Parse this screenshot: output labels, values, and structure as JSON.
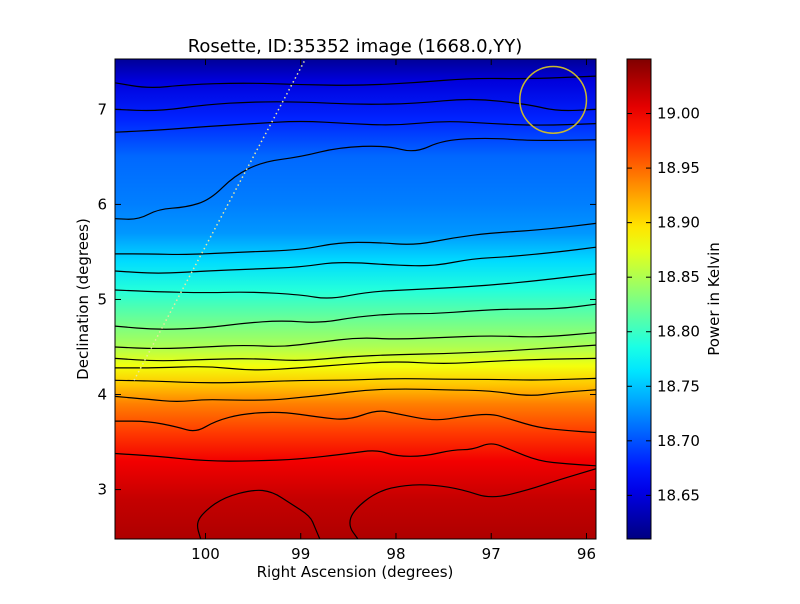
{
  "chart_data": {
    "type": "heatmap",
    "title": "Rosette, ID:35352 image (1668.0,YY)",
    "xlabel": "Right Ascension (degrees)",
    "ylabel": "Declination (degrees)",
    "xlim": [
      100.95,
      95.9
    ],
    "ylim": [
      2.48,
      7.53
    ],
    "x_inverted": true,
    "x_ticks": [
      100,
      99,
      98,
      97,
      96
    ],
    "y_ticks": [
      3,
      4,
      5,
      6,
      7
    ],
    "grid": false,
    "colormap": "jet",
    "colorbar": {
      "label": "Power in Kelvin",
      "range": [
        18.61,
        19.05
      ],
      "ticks": [
        "18.65",
        "18.70",
        "18.75",
        "18.80",
        "18.85",
        "18.90",
        "18.95",
        "19.00"
      ]
    },
    "intensity_profile": [
      {
        "dec": 2.48,
        "value": 19.03
      },
      {
        "dec": 2.9,
        "value": 19.02
      },
      {
        "dec": 3.3,
        "value": 19.0
      },
      {
        "dec": 3.6,
        "value": 18.97
      },
      {
        "dec": 3.9,
        "value": 18.94
      },
      {
        "dec": 4.1,
        "value": 18.91
      },
      {
        "dec": 4.3,
        "value": 18.88
      },
      {
        "dec": 4.5,
        "value": 18.85
      },
      {
        "dec": 4.8,
        "value": 18.82
      },
      {
        "dec": 5.1,
        "value": 18.79
      },
      {
        "dec": 5.4,
        "value": 18.76
      },
      {
        "dec": 5.7,
        "value": 18.73
      },
      {
        "dec": 6.0,
        "value": 18.72
      },
      {
        "dec": 6.5,
        "value": 18.71
      },
      {
        "dec": 6.9,
        "value": 18.68
      },
      {
        "dec": 7.3,
        "value": 18.65
      },
      {
        "dec": 7.53,
        "value": 18.62
      }
    ],
    "contours": [
      {
        "points": [
          [
            100.95,
            7.28
          ],
          [
            100.6,
            7.22
          ],
          [
            100.2,
            7.26
          ],
          [
            99.6,
            7.28
          ],
          [
            99.0,
            7.26
          ],
          [
            98.4,
            7.25
          ],
          [
            97.8,
            7.28
          ],
          [
            97.2,
            7.33
          ],
          [
            96.6,
            7.32
          ],
          [
            95.9,
            7.35
          ]
        ]
      },
      {
        "points": [
          [
            100.95,
            7.0
          ],
          [
            100.5,
            6.98
          ],
          [
            100.0,
            7.05
          ],
          [
            99.5,
            7.08
          ],
          [
            99.0,
            7.08
          ],
          [
            98.4,
            7.05
          ],
          [
            97.8,
            7.06
          ],
          [
            97.2,
            7.12
          ],
          [
            96.6,
            7.05
          ],
          [
            96.3,
            6.98
          ],
          [
            95.9,
            7.0
          ]
        ]
      },
      {
        "points": [
          [
            100.95,
            6.76
          ],
          [
            100.5,
            6.78
          ],
          [
            100.0,
            6.82
          ],
          [
            99.5,
            6.85
          ],
          [
            99.0,
            6.88
          ],
          [
            98.5,
            6.85
          ],
          [
            98.0,
            6.83
          ],
          [
            97.5,
            6.88
          ],
          [
            97.0,
            6.85
          ],
          [
            96.5,
            6.83
          ],
          [
            95.9,
            6.85
          ]
        ]
      },
      {
        "points": [
          [
            100.95,
            5.85
          ],
          [
            100.7,
            5.84
          ],
          [
            100.5,
            5.95
          ],
          [
            100.2,
            5.97
          ],
          [
            99.95,
            6.05
          ],
          [
            99.7,
            6.3
          ],
          [
            99.4,
            6.45
          ],
          [
            99.0,
            6.5
          ],
          [
            98.6,
            6.6
          ],
          [
            98.1,
            6.62
          ],
          [
            97.8,
            6.54
          ],
          [
            97.5,
            6.68
          ],
          [
            97.0,
            6.7
          ],
          [
            96.6,
            6.67
          ],
          [
            95.9,
            6.68
          ]
        ]
      },
      {
        "points": [
          [
            100.95,
            5.48
          ],
          [
            100.6,
            5.48
          ],
          [
            100.2,
            5.47
          ],
          [
            99.6,
            5.5
          ],
          [
            99.0,
            5.52
          ],
          [
            98.6,
            5.6
          ],
          [
            98.2,
            5.6
          ],
          [
            97.8,
            5.57
          ],
          [
            97.4,
            5.65
          ],
          [
            97.0,
            5.7
          ],
          [
            96.5,
            5.73
          ],
          [
            95.9,
            5.8
          ]
        ]
      },
      {
        "points": [
          [
            100.95,
            5.3
          ],
          [
            100.5,
            5.27
          ],
          [
            100.0,
            5.3
          ],
          [
            99.5,
            5.32
          ],
          [
            99.0,
            5.34
          ],
          [
            98.6,
            5.4
          ],
          [
            98.0,
            5.36
          ],
          [
            97.6,
            5.35
          ],
          [
            97.2,
            5.43
          ],
          [
            96.8,
            5.45
          ],
          [
            96.3,
            5.5
          ],
          [
            95.9,
            5.55
          ]
        ]
      },
      {
        "points": [
          [
            100.95,
            5.1
          ],
          [
            100.5,
            5.08
          ],
          [
            100.0,
            5.07
          ],
          [
            99.5,
            5.08
          ],
          [
            99.0,
            5.05
          ],
          [
            98.7,
            5.0
          ],
          [
            98.3,
            5.08
          ],
          [
            97.9,
            5.1
          ],
          [
            97.5,
            5.12
          ],
          [
            97.0,
            5.15
          ],
          [
            96.5,
            5.2
          ],
          [
            95.9,
            5.27
          ]
        ]
      },
      {
        "points": [
          [
            100.95,
            4.72
          ],
          [
            100.5,
            4.68
          ],
          [
            100.0,
            4.7
          ],
          [
            99.6,
            4.75
          ],
          [
            99.2,
            4.78
          ],
          [
            98.8,
            4.75
          ],
          [
            98.4,
            4.82
          ],
          [
            98.0,
            4.85
          ],
          [
            97.6,
            4.85
          ],
          [
            97.2,
            4.88
          ],
          [
            96.8,
            4.9
          ],
          [
            96.3,
            4.9
          ],
          [
            95.9,
            4.95
          ]
        ]
      },
      {
        "points": [
          [
            100.95,
            4.5
          ],
          [
            100.5,
            4.48
          ],
          [
            100.0,
            4.5
          ],
          [
            99.6,
            4.52
          ],
          [
            99.2,
            4.5
          ],
          [
            98.8,
            4.55
          ],
          [
            98.4,
            4.6
          ],
          [
            98.0,
            4.58
          ],
          [
            97.5,
            4.6
          ],
          [
            97.0,
            4.62
          ],
          [
            96.5,
            4.6
          ],
          [
            95.9,
            4.65
          ]
        ]
      },
      {
        "points": [
          [
            100.95,
            4.38
          ],
          [
            100.5,
            4.35
          ],
          [
            100.0,
            4.37
          ],
          [
            99.5,
            4.38
          ],
          [
            99.0,
            4.35
          ],
          [
            98.5,
            4.4
          ],
          [
            98.0,
            4.42
          ],
          [
            97.5,
            4.43
          ],
          [
            97.0,
            4.45
          ],
          [
            96.5,
            4.48
          ],
          [
            95.9,
            4.52
          ]
        ]
      },
      {
        "points": [
          [
            100.95,
            4.28
          ],
          [
            100.5,
            4.28
          ],
          [
            100.0,
            4.3
          ],
          [
            99.5,
            4.25
          ],
          [
            99.0,
            4.28
          ],
          [
            98.5,
            4.32
          ],
          [
            98.0,
            4.35
          ],
          [
            97.5,
            4.32
          ],
          [
            97.0,
            4.35
          ],
          [
            96.5,
            4.37
          ],
          [
            95.9,
            4.38
          ]
        ]
      },
      {
        "points": [
          [
            100.95,
            4.15
          ],
          [
            100.5,
            4.14
          ],
          [
            100.0,
            4.12
          ],
          [
            99.5,
            4.13
          ],
          [
            99.0,
            4.15
          ],
          [
            98.5,
            4.15
          ],
          [
            98.0,
            4.17
          ],
          [
            97.5,
            4.16
          ],
          [
            97.0,
            4.16
          ],
          [
            96.5,
            4.15
          ],
          [
            95.9,
            4.17
          ]
        ]
      },
      {
        "points": [
          [
            100.95,
            3.98
          ],
          [
            100.6,
            3.95
          ],
          [
            100.3,
            3.92
          ],
          [
            100.0,
            3.95
          ],
          [
            99.7,
            3.94
          ],
          [
            99.3,
            3.94
          ],
          [
            99.0,
            3.97
          ],
          [
            98.7,
            4.0
          ],
          [
            98.3,
            4.05
          ],
          [
            97.9,
            4.06
          ],
          [
            97.5,
            4.05
          ],
          [
            97.0,
            4.04
          ],
          [
            96.6,
            3.98
          ],
          [
            96.3,
            4.02
          ],
          [
            95.9,
            4.05
          ]
        ]
      },
      {
        "points": [
          [
            100.95,
            3.72
          ],
          [
            100.6,
            3.72
          ],
          [
            100.3,
            3.66
          ],
          [
            100.1,
            3.6
          ],
          [
            99.9,
            3.72
          ],
          [
            99.6,
            3.8
          ],
          [
            99.2,
            3.82
          ],
          [
            98.8,
            3.76
          ],
          [
            98.5,
            3.73
          ],
          [
            98.2,
            3.84
          ],
          [
            98.0,
            3.8
          ],
          [
            97.6,
            3.72
          ],
          [
            97.3,
            3.77
          ],
          [
            97.0,
            3.8
          ],
          [
            96.8,
            3.74
          ],
          [
            96.5,
            3.65
          ],
          [
            96.2,
            3.62
          ],
          [
            95.9,
            3.6
          ]
        ]
      },
      {
        "points": [
          [
            100.95,
            3.38
          ],
          [
            100.5,
            3.35
          ],
          [
            100.0,
            3.3
          ],
          [
            99.5,
            3.3
          ],
          [
            99.0,
            3.32
          ],
          [
            98.5,
            3.38
          ],
          [
            98.2,
            3.42
          ],
          [
            98.0,
            3.35
          ],
          [
            97.7,
            3.35
          ],
          [
            97.4,
            3.42
          ],
          [
            97.2,
            3.42
          ],
          [
            97.0,
            3.5
          ],
          [
            96.8,
            3.42
          ],
          [
            96.5,
            3.3
          ],
          [
            96.2,
            3.27
          ],
          [
            95.9,
            3.25
          ]
        ]
      },
      {
        "points": [
          [
            100.05,
            2.48
          ],
          [
            100.1,
            2.65
          ],
          [
            100.0,
            2.78
          ],
          [
            99.8,
            2.92
          ],
          [
            99.5,
            3.0
          ],
          [
            99.3,
            2.98
          ],
          [
            99.1,
            2.85
          ],
          [
            98.9,
            2.72
          ],
          [
            98.85,
            2.6
          ],
          [
            98.8,
            2.48
          ]
        ]
      },
      {
        "points": [
          [
            98.4,
            2.48
          ],
          [
            98.5,
            2.62
          ],
          [
            98.45,
            2.78
          ],
          [
            98.2,
            2.98
          ],
          [
            97.9,
            3.05
          ],
          [
            97.6,
            3.05
          ],
          [
            97.3,
            3.0
          ],
          [
            97.0,
            2.9
          ],
          [
            96.6,
            3.0
          ],
          [
            96.3,
            3.1
          ],
          [
            95.9,
            3.22
          ]
        ]
      }
    ],
    "dotted_track": {
      "from": [
        100.75,
        4.15
      ],
      "to": [
        98.95,
        7.53
      ]
    },
    "beam_circle": {
      "center": [
        96.35,
        7.1
      ],
      "radius": 0.35
    }
  }
}
